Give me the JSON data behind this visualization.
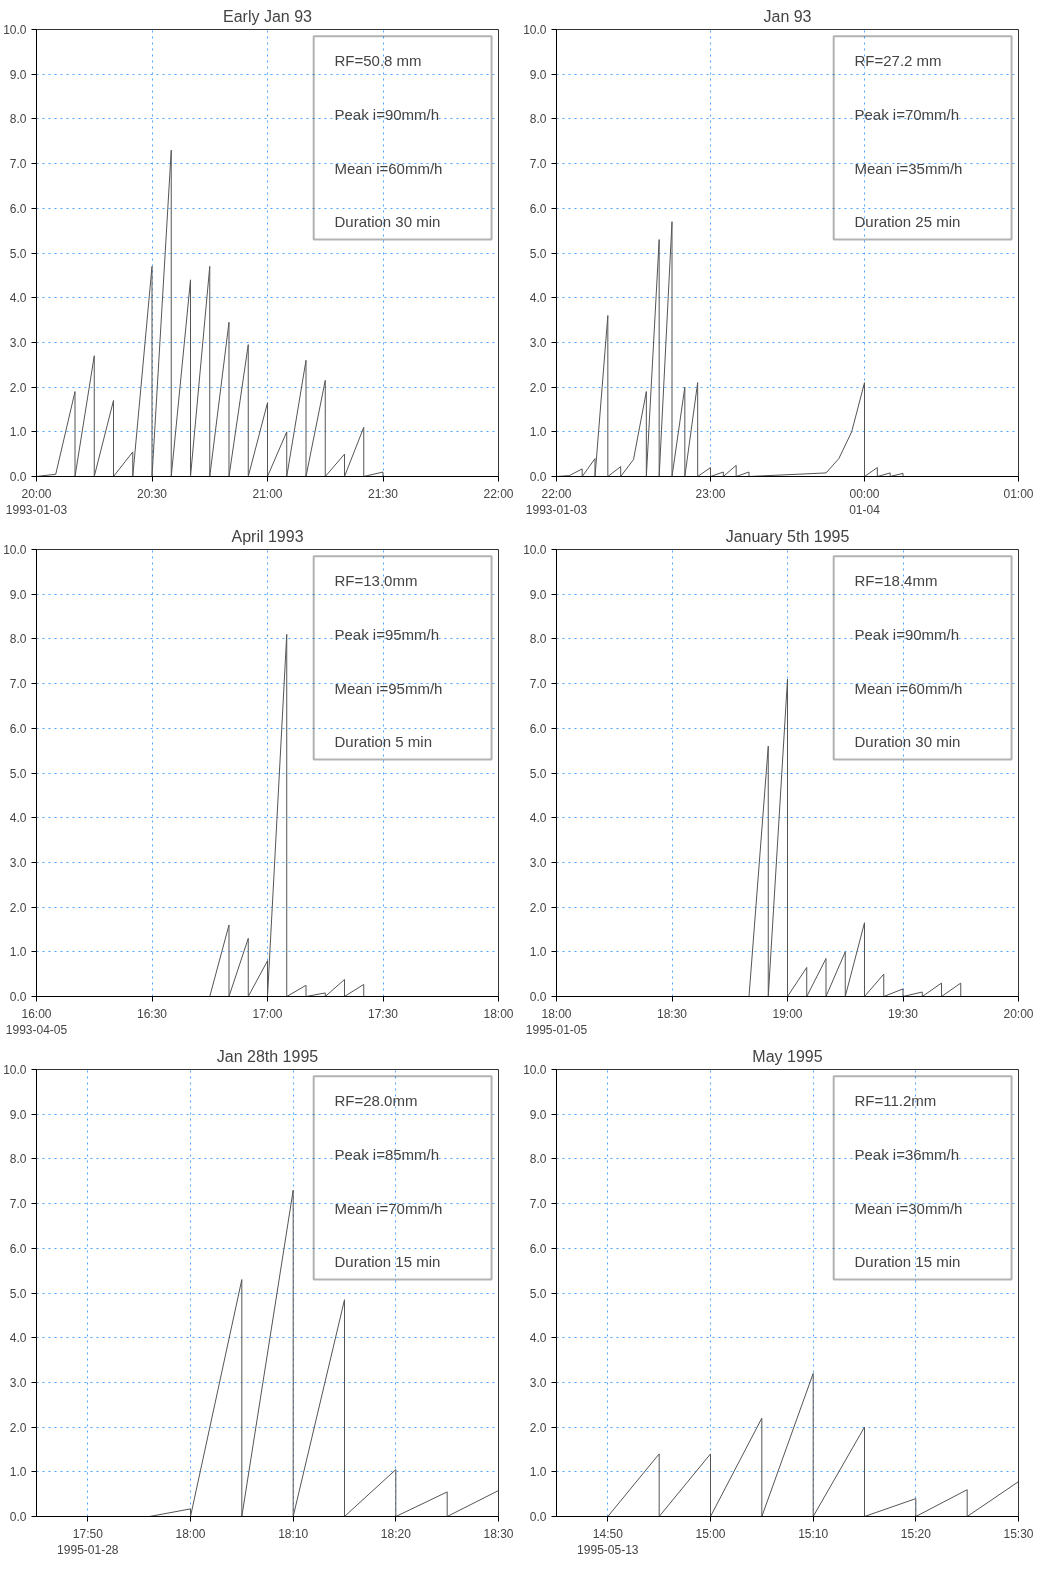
{
  "chart_data": [
    {
      "type": "line",
      "title": "Early Jan 93",
      "color": "#555555",
      "grid": true,
      "x": [
        20,
        20.0833,
        20.1667,
        20.1667,
        20.25,
        20.25,
        20.3333,
        20.3333,
        20.4167,
        20.4167,
        20.5,
        20.5,
        20.5833,
        20.5833,
        20.6667,
        20.6667,
        20.75,
        20.75,
        20.8333,
        20.8333,
        20.9167,
        20.9167,
        21,
        21,
        21.0833,
        21.0833,
        21.1667,
        21.1667,
        21.25,
        21.25,
        21.3333,
        21.3333,
        21.4167,
        21.4167,
        21.5,
        21.5,
        22
      ],
      "values": [
        0,
        0.05,
        1.9,
        0,
        2.7,
        0,
        1.7,
        0,
        0.55,
        0,
        4.7,
        0,
        7.3,
        0,
        4.4,
        0,
        4.7,
        0,
        3.45,
        0,
        2.95,
        0,
        1.65,
        0,
        1.0,
        0,
        2.6,
        0,
        2.15,
        0,
        0.5,
        0,
        1.1,
        0,
        0.1,
        0,
        0
      ],
      "xlim": [
        20,
        22
      ],
      "xticks": [
        {
          "value": 20,
          "label": "20:00\n1993-01-03"
        },
        {
          "value": 20.5,
          "label": "20:30"
        },
        {
          "value": 21,
          "label": "21:00"
        },
        {
          "value": 21.5,
          "label": "21:30"
        },
        {
          "value": 22,
          "label": "22:00"
        }
      ],
      "ylim": [
        0,
        10
      ],
      "yticks": [
        {
          "value": 0,
          "label": "0.0"
        },
        {
          "value": 1,
          "label": "1.0"
        },
        {
          "value": 2,
          "label": "2.0"
        },
        {
          "value": 3,
          "label": "3.0"
        },
        {
          "value": 4,
          "label": "4.0"
        },
        {
          "value": 5,
          "label": "5.0"
        },
        {
          "value": 6,
          "label": "6.0"
        },
        {
          "value": 7,
          "label": "7.0"
        },
        {
          "value": 8,
          "label": "8.0"
        },
        {
          "value": 9,
          "label": "9.0"
        },
        {
          "value": 10,
          "label": "10.0"
        }
      ],
      "annotations": [
        "RF=50.8 mm",
        "Peak i=90mm/h",
        "Mean i=60mm/h",
        "Duration 30 min"
      ]
    },
    {
      "type": "line",
      "title": "Jan 93",
      "color": "#555555",
      "grid": true,
      "x": [
        "1993-01-03T22:00",
        "1993-01-03T22:05",
        "1993-01-03T22:10",
        "1993-01-03T22:10",
        "1993-01-03T22:15",
        "1993-01-03T22:15",
        "1993-01-03T22:20",
        "1993-01-03T22:20",
        "1993-01-03T22:25",
        "1993-01-03T22:25",
        "1993-01-03T22:30",
        "1993-01-03T22:35",
        "1993-01-03T22:35",
        "1993-01-03T22:40",
        "1993-01-03T22:40",
        "1993-01-03T22:45",
        "1993-01-03T22:45",
        "1993-01-03T22:50",
        "1993-01-03T22:50",
        "1993-01-03T22:55",
        "1993-01-03T22:55",
        "1993-01-03T23:00",
        "1993-01-03T23:00",
        "1993-01-03T23:05",
        "1993-01-03T23:05",
        "1993-01-03T23:10",
        "1993-01-03T23:10",
        "1993-01-03T23:15",
        "1993-01-03T23:15",
        "1993-01-03T23:45",
        "1993-01-03T23:50",
        "1993-01-03T23:55",
        "1993-01-04T00:00",
        "1993-01-04T00:00",
        "1993-01-04T00:05",
        "1993-01-04T00:05",
        "1993-01-04T00:10",
        "1993-01-04T00:10",
        "1993-01-04T00:15",
        "1993-01-04T00:15",
        "1993-01-04T01:00"
      ],
      "values": [
        0,
        0.02,
        0.17,
        0,
        0.4,
        0,
        3.6,
        0,
        0.22,
        0,
        0.38,
        1.9,
        0,
        5.3,
        0,
        5.7,
        0,
        2.0,
        0,
        2.1,
        0,
        0.2,
        0,
        0.1,
        0,
        0.25,
        0,
        0.1,
        0,
        0.08,
        0.4,
        1.0,
        2.1,
        0,
        0.2,
        0,
        0.08,
        0,
        0.07,
        0,
        0
      ],
      "xlim": [
        "1993-01-03T22:00",
        "1993-01-04T01:00"
      ],
      "xticks": [
        {
          "value": "1993-01-03T22:00",
          "label": "22:00\n1993-01-03"
        },
        {
          "value": "1993-01-03T23:00",
          "label": "23:00"
        },
        {
          "value": "1993-01-04T00:00",
          "label": "00:00\n01-04"
        },
        {
          "value": "1993-01-04T01:00",
          "label": "01:00"
        }
      ],
      "ylim": [
        0,
        10
      ],
      "yticks": [
        {
          "value": 0,
          "label": "0.0"
        },
        {
          "value": 1,
          "label": "1.0"
        },
        {
          "value": 2,
          "label": "2.0"
        },
        {
          "value": 3,
          "label": "3.0"
        },
        {
          "value": 4,
          "label": "4.0"
        },
        {
          "value": 5,
          "label": "5.0"
        },
        {
          "value": 6,
          "label": "6.0"
        },
        {
          "value": 7,
          "label": "7.0"
        },
        {
          "value": 8,
          "label": "8.0"
        },
        {
          "value": 9,
          "label": "9.0"
        },
        {
          "value": 10,
          "label": "10.0"
        }
      ],
      "annotations": [
        "RF=27.2 mm",
        "Peak i=70mm/h",
        "Mean i=35mm/h",
        "Duration 25 min"
      ]
    },
    {
      "type": "line",
      "title": "April 1993",
      "color": "#555555",
      "grid": true,
      "x": [
        16,
        16.75,
        16.8333,
        16.8333,
        16.9167,
        16.9167,
        17,
        17,
        17.0833,
        17.0833,
        17.1667,
        17.1667,
        17.25,
        17.25,
        17.3333,
        17.3333,
        17.4167,
        17.4167,
        18
      ],
      "values": [
        0,
        0,
        1.6,
        0,
        1.3,
        0,
        0.8,
        0,
        8.1,
        0,
        0.25,
        0,
        0.08,
        0,
        0.38,
        0,
        0.27,
        0,
        0
      ],
      "xlim": [
        16,
        18
      ],
      "xticks": [
        {
          "value": 16,
          "label": "16:00\n1993-04-05"
        },
        {
          "value": 16.5,
          "label": "16:30"
        },
        {
          "value": 17,
          "label": "17:00"
        },
        {
          "value": 17.5,
          "label": "17:30"
        },
        {
          "value": 18,
          "label": "18:00"
        }
      ],
      "ylim": [
        0,
        10
      ],
      "yticks": [
        {
          "value": 0,
          "label": "0.0"
        },
        {
          "value": 1,
          "label": "1.0"
        },
        {
          "value": 2,
          "label": "2.0"
        },
        {
          "value": 3,
          "label": "3.0"
        },
        {
          "value": 4,
          "label": "4.0"
        },
        {
          "value": 5,
          "label": "5.0"
        },
        {
          "value": 6,
          "label": "6.0"
        },
        {
          "value": 7,
          "label": "7.0"
        },
        {
          "value": 8,
          "label": "8.0"
        },
        {
          "value": 9,
          "label": "9.0"
        },
        {
          "value": 10,
          "label": "10.0"
        }
      ],
      "annotations": [
        "RF=13.0mm",
        "Peak i=95mm/h",
        "Mean i=95mm/h",
        "Duration 5 min"
      ]
    },
    {
      "type": "line",
      "title": "January 5th 1995",
      "color": "#555555",
      "grid": true,
      "x": [
        18,
        18.8333,
        18.9167,
        18.9167,
        19,
        19,
        19.0833,
        19.0833,
        19.1667,
        19.1667,
        19.25,
        19.25,
        19.3333,
        19.3333,
        19.4167,
        19.4167,
        19.5,
        19.5,
        19.5833,
        19.5833,
        19.6667,
        19.6667,
        19.75,
        19.75,
        20
      ],
      "values": [
        0,
        0,
        5.6,
        0,
        7.1,
        0,
        0.65,
        0,
        0.85,
        0,
        1.0,
        0,
        1.65,
        0,
        0.5,
        0,
        0.17,
        0,
        0.1,
        0,
        0.3,
        0,
        0.3,
        0,
        0
      ],
      "xlim": [
        18,
        20
      ],
      "xticks": [
        {
          "value": 18,
          "label": "18:00\n1995-01-05"
        },
        {
          "value": 18.5,
          "label": "18:30"
        },
        {
          "value": 19,
          "label": "19:00"
        },
        {
          "value": 19.5,
          "label": "19:30"
        },
        {
          "value": 20,
          "label": "20:00"
        }
      ],
      "ylim": [
        0,
        10
      ],
      "yticks": [
        {
          "value": 0,
          "label": "0.0"
        },
        {
          "value": 1,
          "label": "1.0"
        },
        {
          "value": 2,
          "label": "2.0"
        },
        {
          "value": 3,
          "label": "3.0"
        },
        {
          "value": 4,
          "label": "4.0"
        },
        {
          "value": 5,
          "label": "5.0"
        },
        {
          "value": 6,
          "label": "6.0"
        },
        {
          "value": 7,
          "label": "7.0"
        },
        {
          "value": 8,
          "label": "8.0"
        },
        {
          "value": 9,
          "label": "9.0"
        },
        {
          "value": 10,
          "label": "10.0"
        }
      ],
      "annotations": [
        "RF=18.4mm",
        "Peak i=90mm/h",
        "Mean i=60mm/h",
        "Duration 30 min"
      ]
    },
    {
      "type": "line",
      "title": "Jan 28th 1995",
      "color": "#555555",
      "grid": true,
      "x": [
        17.75,
        17.9333,
        18,
        18,
        18.0833,
        18.0833,
        18.1667,
        18.1667,
        18.25,
        18.25,
        18.3333,
        18.3333,
        18.4167,
        18.4167,
        18.5
      ],
      "values": [
        0,
        0,
        0.17,
        0,
        5.3,
        0,
        7.3,
        0,
        4.85,
        0,
        1.05,
        0,
        0.55,
        0,
        0.58
      ],
      "xlim": [
        17.75,
        18.5
      ],
      "xticks": [
        {
          "value": 17.8333,
          "label": "17:50\n1995-01-28"
        },
        {
          "value": 18,
          "label": "18:00"
        },
        {
          "value": 18.1667,
          "label": "18:10"
        },
        {
          "value": 18.3333,
          "label": "18:20"
        },
        {
          "value": 18.5,
          "label": "18:30"
        }
      ],
      "ylim": [
        0,
        10
      ],
      "yticks": [
        {
          "value": 0,
          "label": "0.0"
        },
        {
          "value": 1,
          "label": "1.0"
        },
        {
          "value": 2,
          "label": "2.0"
        },
        {
          "value": 3,
          "label": "3.0"
        },
        {
          "value": 4,
          "label": "4.0"
        },
        {
          "value": 5,
          "label": "5.0"
        },
        {
          "value": 6,
          "label": "6.0"
        },
        {
          "value": 7,
          "label": "7.0"
        },
        {
          "value": 8,
          "label": "8.0"
        },
        {
          "value": 9,
          "label": "9.0"
        },
        {
          "value": 10,
          "label": "10.0"
        }
      ],
      "annotations": [
        "RF=28.0mm",
        "Peak i=85mm/h",
        "Mean i=70mm/h",
        "Duration 15 min"
      ]
    },
    {
      "type": "line",
      "title": "May 1995",
      "color": "#555555",
      "grid": true,
      "x": [
        14.75,
        14.8333,
        14.9167,
        14.9167,
        15,
        15,
        15.0833,
        15.0833,
        15.1667,
        15.1667,
        15.25,
        15.25,
        15.3333,
        15.3333,
        15.4167,
        15.4167,
        15.5
      ],
      "values": [
        0,
        0,
        1.4,
        0,
        1.4,
        0,
        2.2,
        0,
        3.2,
        0,
        2.0,
        0,
        0.4,
        0,
        0.6,
        0,
        0.78
      ],
      "xlim": [
        14.75,
        15.5
      ],
      "xticks": [
        {
          "value": 14.8333,
          "label": "14:50\n1995-05-13"
        },
        {
          "value": 15,
          "label": "15:00"
        },
        {
          "value": 15.1667,
          "label": "15:10"
        },
        {
          "value": 15.3333,
          "label": "15:20"
        },
        {
          "value": 15.5,
          "label": "15:30"
        }
      ],
      "ylim": [
        0,
        10
      ],
      "yticks": [
        {
          "value": 0,
          "label": "0.0"
        },
        {
          "value": 1,
          "label": "1.0"
        },
        {
          "value": 2,
          "label": "2.0"
        },
        {
          "value": 3,
          "label": "3.0"
        },
        {
          "value": 4,
          "label": "4.0"
        },
        {
          "value": 5,
          "label": "5.0"
        },
        {
          "value": 6,
          "label": "6.0"
        },
        {
          "value": 7,
          "label": "7.0"
        },
        {
          "value": 8,
          "label": "8.0"
        },
        {
          "value": 9,
          "label": "9.0"
        },
        {
          "value": 10,
          "label": "10.0"
        }
      ],
      "annotations": [
        "RF=11.2mm",
        "Peak i=36mm/h",
        "Mean i=30mm/h",
        "Duration 15 min"
      ]
    }
  ]
}
